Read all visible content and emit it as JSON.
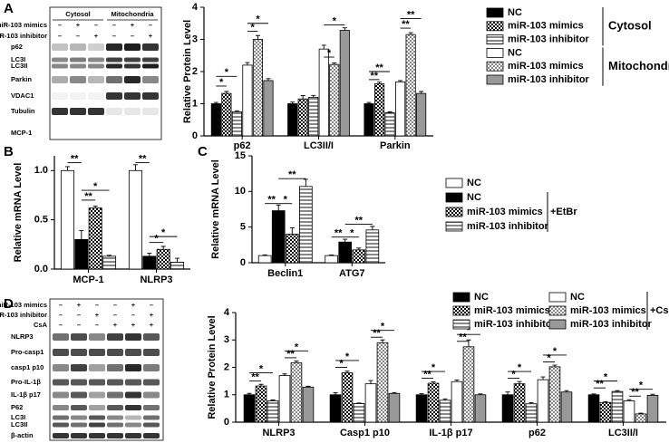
{
  "panels": [
    "A",
    "B",
    "C",
    "D"
  ],
  "blots": [
    {
      "groups": [
        "Cytosol",
        "Mitochondria"
      ],
      "treatments": [
        {
          "name": "miR-103 mimics",
          "signs": [
            "–",
            "+",
            "–",
            "–",
            "+",
            "–"
          ]
        },
        {
          "name": "miR-103 inhibitor",
          "signs": [
            "–",
            "–",
            "+",
            "–",
            "–",
            "+"
          ]
        }
      ],
      "labels": [
        "p62",
        "LC3I",
        "LC3II",
        "Parkin",
        "VDAC1",
        "Tubulin",
        "MCP-1"
      ]
    },
    {
      "treatments": [
        {
          "name": "miR-103 mimics",
          "signs": [
            "–",
            "+",
            "–",
            "–",
            "+",
            "–"
          ]
        },
        {
          "name": "miR-103 inhibitor",
          "signs": [
            "–",
            "–",
            "+",
            "–",
            "–",
            "+"
          ]
        },
        {
          "name": "CsA",
          "signs": [
            "–",
            "–",
            "–",
            "+",
            "+",
            "+"
          ]
        }
      ],
      "labels": [
        "NLRP3",
        "Pro-casp1",
        "casp1 p10",
        "Pro-IL-1β",
        "IL-1β p17",
        "P62",
        "LC3I",
        "LC3II",
        "β-actin"
      ]
    }
  ],
  "chart_data": [
    {
      "type": "bar",
      "y_label": "Relative Protein Level",
      "categories": [
        "p62",
        "LC3II/I",
        "Parkin"
      ],
      "ylim": [
        0,
        4
      ],
      "yticks": [
        0,
        1,
        2,
        3,
        4
      ],
      "legend_groups": [
        "Cytosol",
        "Mitochondria"
      ],
      "series": [
        {
          "name": "NC",
          "color": "#000000",
          "pattern": "solid",
          "values": [
            1.0,
            1.0,
            1.0
          ],
          "errors": [
            0.04,
            0.05,
            0.04
          ]
        },
        {
          "name": "miR-103 mimics",
          "color": "#000000",
          "pattern": "checker",
          "values": [
            1.32,
            1.15,
            1.62
          ],
          "errors": [
            0.06,
            0.1,
            0.05
          ]
        },
        {
          "name": "miR-103 inhibitor",
          "color": "#888888",
          "pattern": "hstripe",
          "values": [
            0.75,
            1.2,
            0.72
          ],
          "errors": [
            0.03,
            0.06,
            0.03
          ]
        },
        {
          "name": "NC",
          "color": "#ffffff",
          "pattern": "solid",
          "values": [
            2.2,
            2.7,
            1.68
          ],
          "errors": [
            0.08,
            0.12,
            0.04
          ]
        },
        {
          "name": "miR-103 mimics",
          "color": "#888888",
          "pattern": "checker",
          "values": [
            3.0,
            2.22,
            3.15
          ],
          "errors": [
            0.12,
            0.05,
            0.06
          ]
        },
        {
          "name": "miR-103 inhibitor",
          "color": "#999999",
          "pattern": "solid",
          "values": [
            1.72,
            3.28,
            1.32
          ],
          "errors": [
            0.06,
            0.08,
            0.06
          ]
        }
      ],
      "significance": [
        "*",
        "*",
        "*",
        "*",
        "*",
        "*",
        "**",
        "**",
        "**",
        "**"
      ]
    },
    {
      "type": "bar",
      "y_label": "Relative mRNA Level",
      "categories": [
        "MCP-1",
        "NLRP3"
      ],
      "ylim": [
        0,
        1.15
      ],
      "yticks": [
        {
          "value": 0,
          "label": "0.0"
        },
        0.5,
        {
          "value": 1,
          "label": "1.0"
        }
      ],
      "series": [
        {
          "color": "#ffffff",
          "pattern": "solid",
          "values": [
            1.0,
            1.0
          ],
          "errors": [
            0.04,
            0.06
          ]
        },
        {
          "color": "#000000",
          "pattern": "solid",
          "values": [
            0.3,
            0.13
          ],
          "errors": [
            0.09,
            0.03
          ]
        },
        {
          "color": "#000000",
          "pattern": "checker",
          "values": [
            0.62,
            0.2
          ],
          "errors": [
            0.02,
            0.03
          ]
        },
        {
          "color": "#888888",
          "pattern": "hstripe",
          "values": [
            0.13,
            0.07
          ],
          "errors": [
            0.01,
            0.04
          ]
        }
      ],
      "significance": [
        "**",
        "**",
        "*",
        "**",
        "*",
        "*"
      ]
    },
    {
      "type": "bar",
      "y_label": "Relative mRNA Level",
      "categories": [
        "Beclin1",
        "ATG7"
      ],
      "ylim": [
        0,
        15
      ],
      "yticks": [
        0,
        5,
        10,
        15
      ],
      "legend_note": "+EtBr",
      "series": [
        {
          "name": "NC",
          "color": "#ffffff",
          "pattern": "solid",
          "values": [
            1.0,
            1.0
          ],
          "errors": [
            0.1,
            0.08
          ]
        },
        {
          "name": "NC",
          "color": "#000000",
          "pattern": "solid",
          "values": [
            7.3,
            2.9
          ],
          "errors": [
            0.8,
            0.4
          ]
        },
        {
          "name": "miR-103 mimics",
          "color": "#000000",
          "pattern": "checker",
          "values": [
            4.0,
            1.8
          ],
          "errors": [
            0.9,
            0.25
          ]
        },
        {
          "name": "miR-103 inhibitor",
          "color": "#888888",
          "pattern": "hstripe",
          "values": [
            10.7,
            4.6
          ],
          "errors": [
            1.0,
            0.5
          ]
        }
      ],
      "significance": [
        "**",
        "*",
        "**",
        "**",
        "*",
        "**"
      ]
    },
    {
      "type": "bar",
      "y_label": "Relative Protein Level",
      "categories": [
        "NLRP3",
        "Casp1 p10",
        "IL-1β p17",
        "p62",
        "LC3II/I"
      ],
      "ylim": [
        0,
        4
      ],
      "yticks": [
        0,
        1,
        2,
        3,
        4
      ],
      "legend_note": "+CsA",
      "series": [
        {
          "name": "NC",
          "color": "#000000",
          "pattern": "solid",
          "values": [
            1.0,
            1.0,
            1.0,
            1.0,
            1.0
          ],
          "errors": [
            0.05,
            0.07,
            0.04,
            0.1,
            0.03
          ]
        },
        {
          "name": "miR-103 mimics",
          "color": "#000000",
          "pattern": "checker",
          "values": [
            1.32,
            1.8,
            1.42,
            1.4,
            0.72
          ],
          "errors": [
            0.06,
            0.06,
            0.05,
            0.08,
            0.03
          ]
        },
        {
          "name": "miR-103 inhibitor",
          "color": "#888888",
          "pattern": "hstripe",
          "values": [
            0.78,
            0.68,
            0.8,
            0.67,
            1.12
          ],
          "errors": [
            0.03,
            0.02,
            0.05,
            0.04,
            0.03
          ]
        },
        {
          "name": "NC",
          "color": "#ffffff",
          "pattern": "solid",
          "values": [
            1.7,
            1.4,
            1.48,
            1.55,
            0.78
          ],
          "errors": [
            0.06,
            0.12,
            0.06,
            0.1,
            0.04
          ]
        },
        {
          "name": "miR-103 mimics",
          "color": "#888888",
          "pattern": "checker",
          "values": [
            2.17,
            2.9,
            2.75,
            2.02,
            0.3
          ],
          "errors": [
            0.06,
            0.1,
            0.25,
            0.06,
            0.03
          ]
        },
        {
          "name": "miR-103 inhibitor",
          "color": "#999999",
          "pattern": "solid",
          "values": [
            1.28,
            1.05,
            1.0,
            1.1,
            0.98
          ],
          "errors": [
            0.03,
            0.03,
            0.03,
            0.05,
            0.04
          ]
        }
      ],
      "significance": [
        "**",
        "*",
        "**",
        "*",
        "*",
        "*",
        "**",
        "*",
        "**",
        "*",
        "**",
        "*",
        "*",
        "*",
        "*",
        "*",
        "**",
        "*",
        "**",
        "*"
      ]
    }
  ]
}
